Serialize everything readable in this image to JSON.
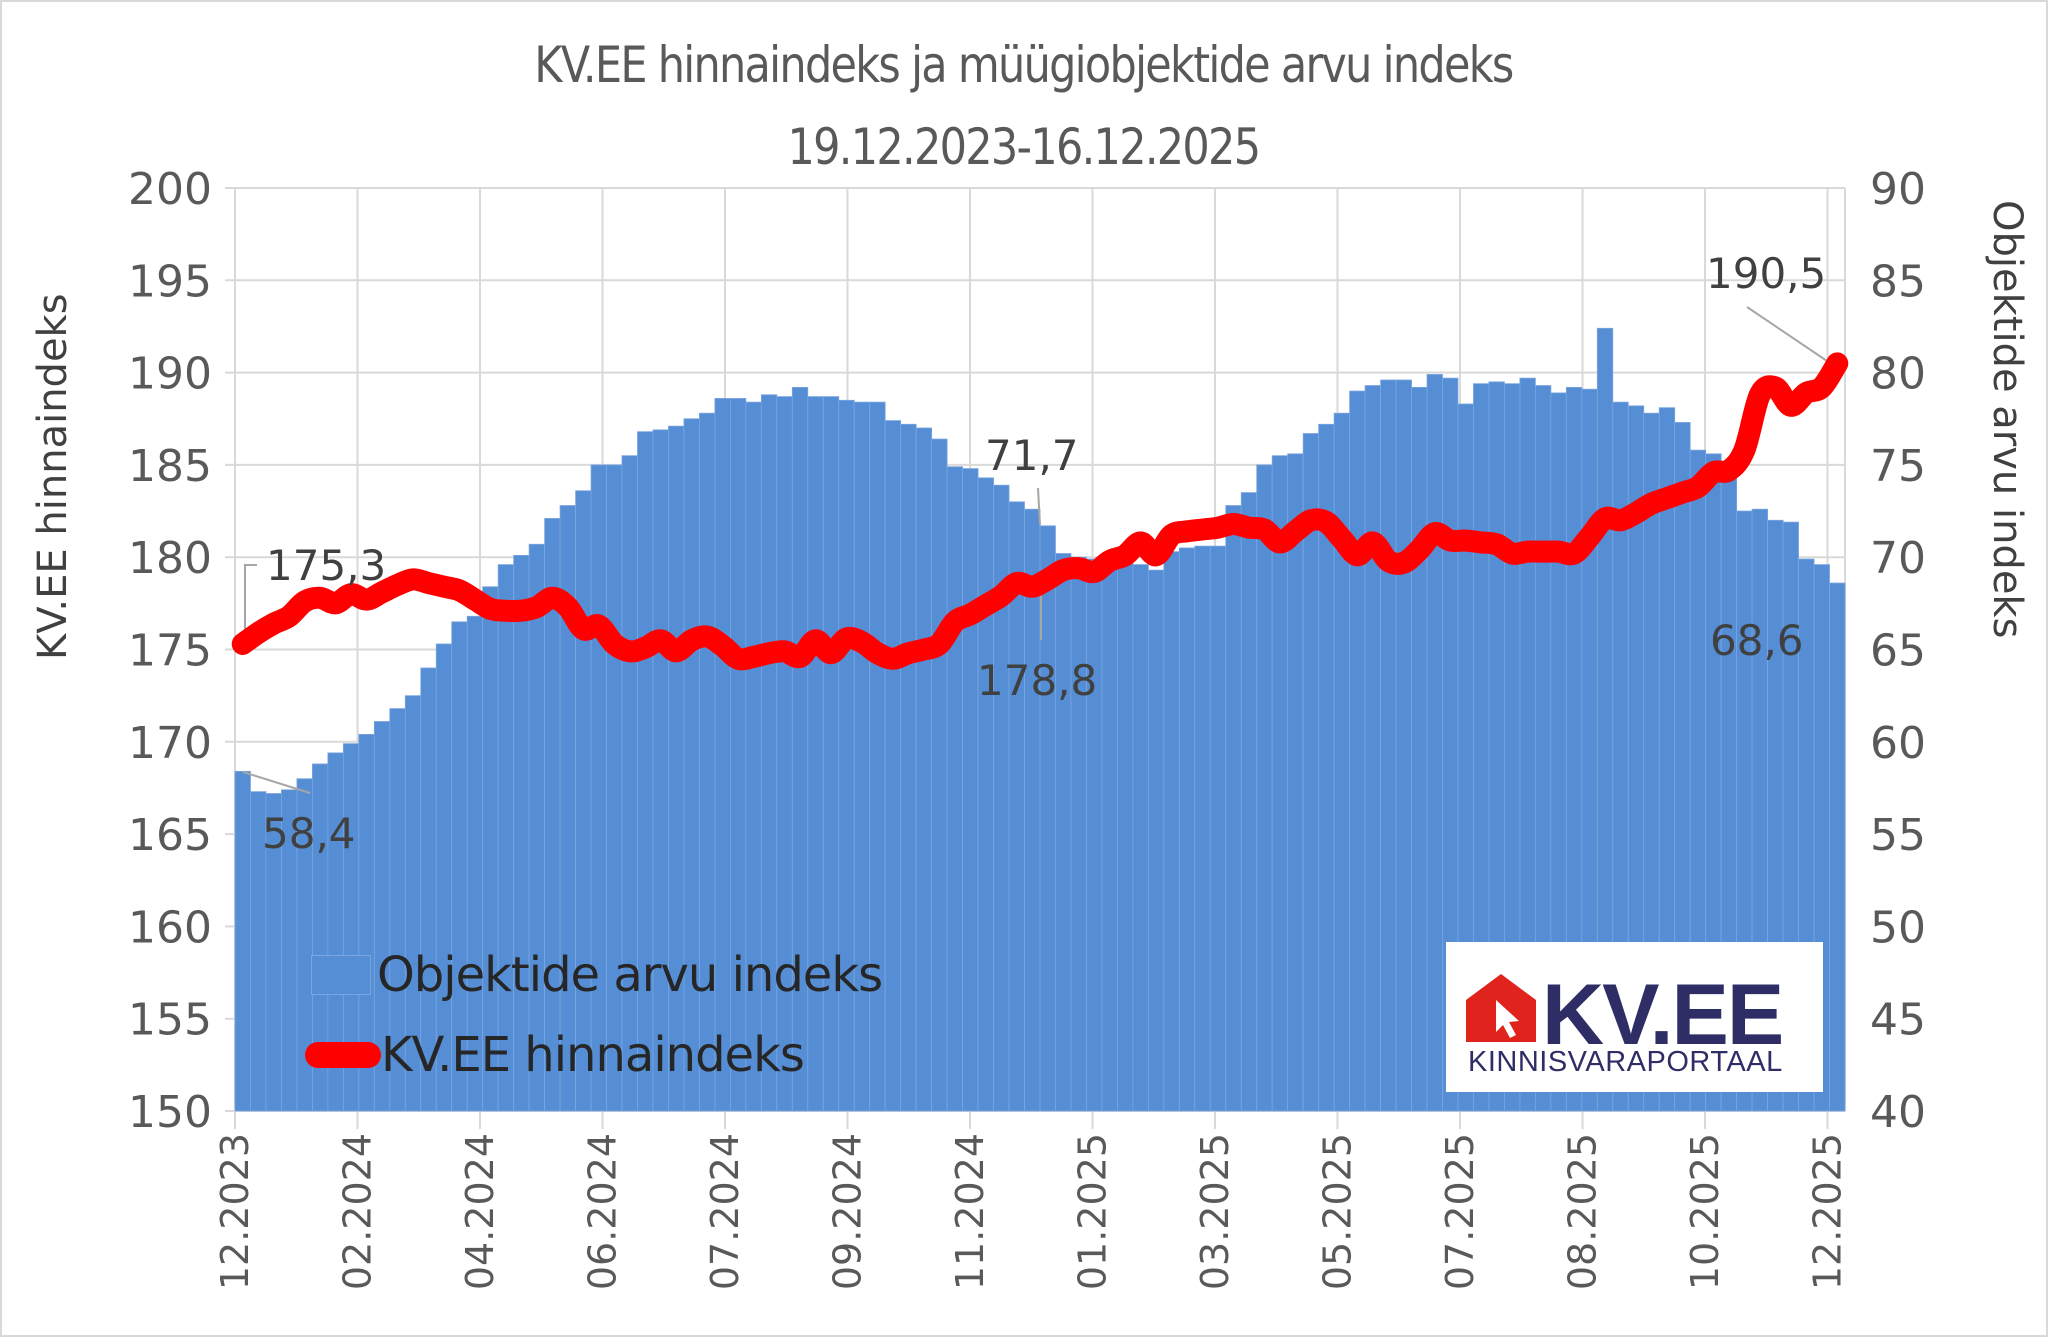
{
  "title": {
    "line1": "KV.EE hinnaindeks ja müügiobjektide arvu indeks",
    "line2": "19.12.2023-16.12.2025"
  },
  "axes": {
    "left_title": "KV.EE hinnaindeks",
    "right_title": "Objektide arvu indeks",
    "left_ticks": [
      "200",
      "195",
      "190",
      "185",
      "180",
      "175",
      "170",
      "165",
      "160",
      "155",
      "150"
    ],
    "right_ticks": [
      "90",
      "85",
      "80",
      "75",
      "70",
      "65",
      "60",
      "55",
      "50",
      "45",
      "40"
    ],
    "x_ticks": [
      "12.2023",
      "02.2024",
      "04.2024",
      "06.2024",
      "07.2024",
      "09.2024",
      "11.2024",
      "01.2025",
      "03.2025",
      "05.2025",
      "07.2025",
      "08.2025",
      "10.2025",
      "12.2025"
    ]
  },
  "legend": {
    "bar_label": "Objektide arvu indeks",
    "line_label": "KV.EE hinnaindeks"
  },
  "annotations": {
    "first_price": "175,3",
    "first_count": "58,4",
    "mid_count": "71,7",
    "mid_price": "178,8",
    "last_price": "190,5",
    "last_count": "68,6"
  },
  "logo": {
    "brand": "KV.EE",
    "subtitle": "KINNISVARAPORTAAL"
  },
  "colors": {
    "bar": "#558ed5",
    "line": "#ff0000",
    "grid": "#d9d9d9",
    "text": "#595959",
    "logo_red": "#e0231c",
    "logo_navy": "#2e2d66"
  },
  "chart_data": {
    "type": "bar+line",
    "title": "KV.EE hinnaindeks ja müügiobjektide arvu indeks 19.12.2023-16.12.2025",
    "xlabel": "",
    "ylabel": "KV.EE hinnaindeks",
    "y2label": "Objektide arvu indeks",
    "ylim": [
      150,
      200
    ],
    "y2lim": [
      40,
      90
    ],
    "grid": true,
    "legend_position": "lower-left inside",
    "x_ticks": [
      "12.2023",
      "02.2024",
      "04.2024",
      "06.2024",
      "07.2024",
      "09.2024",
      "11.2024",
      "01.2025",
      "03.2025",
      "05.2025",
      "07.2025",
      "08.2025",
      "10.2025",
      "12.2025"
    ],
    "points": 104,
    "frequency": "weekly",
    "series": [
      {
        "name": "Objektide arvu indeks",
        "type": "bar",
        "axis": "right",
        "values": [
          58.4,
          57.3,
          57.2,
          57.4,
          58.0,
          58.8,
          59.4,
          59.9,
          60.4,
          61.1,
          61.8,
          62.5,
          64.0,
          65.3,
          66.5,
          66.8,
          68.4,
          69.6,
          70.1,
          70.7,
          72.1,
          72.8,
          73.6,
          75.0,
          75.0,
          75.5,
          76.8,
          76.9,
          77.1,
          77.5,
          77.8,
          78.6,
          78.6,
          78.4,
          78.8,
          78.7,
          79.2,
          78.7,
          78.7,
          78.5,
          78.4,
          78.4,
          77.4,
          77.2,
          77.0,
          76.4,
          74.9,
          74.8,
          74.3,
          73.9,
          73.0,
          72.6,
          71.7,
          70.2,
          70.0,
          69.9,
          69.8,
          69.7,
          69.6,
          69.3,
          70.3,
          70.5,
          70.6,
          70.6,
          72.8,
          73.5,
          75.0,
          75.5,
          75.6,
          76.7,
          77.2,
          77.8,
          79.0,
          79.3,
          79.6,
          79.6,
          79.2,
          79.9,
          79.7,
          78.3,
          79.4,
          79.5,
          79.4,
          79.7,
          79.3,
          78.9,
          79.2,
          79.1,
          82.4,
          78.4,
          78.2,
          77.8,
          78.1,
          77.3,
          75.8,
          75.6,
          75.1,
          72.5,
          72.6,
          72.0,
          71.9,
          69.9,
          69.6,
          68.6
        ]
      },
      {
        "name": "KV.EE hinnaindeks",
        "type": "line",
        "axis": "left",
        "values": [
          175.3,
          175.9,
          176.4,
          176.8,
          177.6,
          177.8,
          177.5,
          178.0,
          177.7,
          178.1,
          178.5,
          178.8,
          178.6,
          178.4,
          178.2,
          177.7,
          177.2,
          177.1,
          177.1,
          177.3,
          177.8,
          177.3,
          176.1,
          176.3,
          175.3,
          174.9,
          175.1,
          175.5,
          174.9,
          175.5,
          175.7,
          175.2,
          174.5,
          174.6,
          174.8,
          174.9,
          174.6,
          175.5,
          174.8,
          175.6,
          175.4,
          174.8,
          174.5,
          174.8,
          175.0,
          175.3,
          176.5,
          176.9,
          177.4,
          177.9,
          178.6,
          178.4,
          178.8,
          179.3,
          179.4,
          179.2,
          179.8,
          180.1,
          180.8,
          180.1,
          181.2,
          181.4,
          181.5,
          181.6,
          181.8,
          181.6,
          181.5,
          180.8,
          181.4,
          182.0,
          181.9,
          181.0,
          180.1,
          180.8,
          179.8,
          179.7,
          180.4,
          181.3,
          180.9,
          180.9,
          180.8,
          180.7,
          180.2,
          180.3,
          180.3,
          180.3,
          180.2,
          181.1,
          182.1,
          182.0,
          182.4,
          182.9,
          183.2,
          183.5,
          183.8,
          184.6,
          184.7,
          185.8,
          188.8,
          189.2,
          188.2,
          188.9,
          189.2,
          190.5
        ]
      }
    ],
    "annotations": [
      {
        "series": "KV.EE hinnaindeks",
        "index": 0,
        "text": "175,3"
      },
      {
        "series": "Objektide arvu indeks",
        "index": 0,
        "text": "58,4"
      },
      {
        "series": "Objektide arvu indeks",
        "index": 52,
        "text": "71,7"
      },
      {
        "series": "KV.EE hinnaindeks",
        "index": 52,
        "text": "178,8"
      },
      {
        "series": "KV.EE hinnaindeks",
        "index": 103,
        "text": "190,5"
      },
      {
        "series": "Objektide arvu indeks",
        "index": 103,
        "text": "68,6"
      }
    ]
  }
}
